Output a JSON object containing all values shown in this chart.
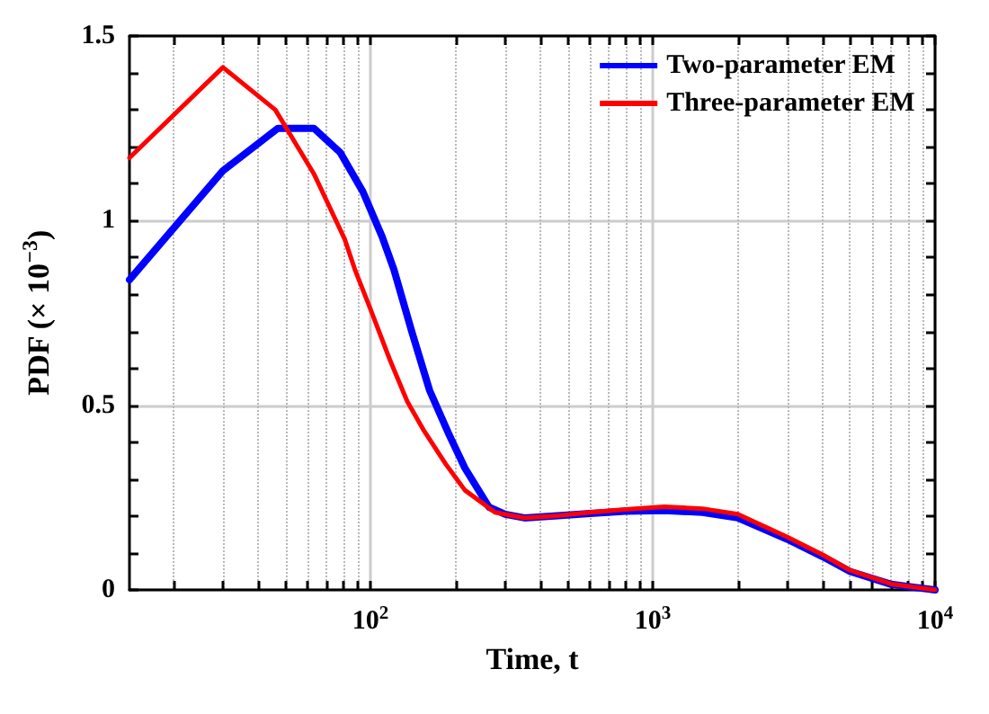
{
  "chart_data": {
    "type": "line",
    "xlabel": "Time, t",
    "ylabel": "PDF (× 10$^{−3}$)",
    "log": "x",
    "grid": true,
    "legend": "top right",
    "line_style": "solid",
    "marker": "none",
    "xlim": [
      14,
      10000
    ],
    "ylim": [
      0,
      1.5
    ],
    "xticks": [
      {
        "value": 20,
        "label": null
      },
      {
        "value": 30,
        "label": null
      },
      {
        "value": 40,
        "label": null
      },
      {
        "value": 50,
        "label": null
      },
      {
        "value": 60,
        "label": null
      },
      {
        "value": 70,
        "label": null
      },
      {
        "value": 80,
        "label": null
      },
      {
        "value": 90,
        "label": null
      },
      {
        "value": 100,
        "label": "10$^{2}$"
      },
      {
        "value": 200,
        "label": null
      },
      {
        "value": 300,
        "label": null
      },
      {
        "value": 400,
        "label": null
      },
      {
        "value": 500,
        "label": null
      },
      {
        "value": 600,
        "label": null
      },
      {
        "value": 700,
        "label": null
      },
      {
        "value": 800,
        "label": null
      },
      {
        "value": 900,
        "label": null
      },
      {
        "value": 1000,
        "label": "10$^{3}$"
      },
      {
        "value": 2000,
        "label": null
      },
      {
        "value": 3000,
        "label": null
      },
      {
        "value": 4000,
        "label": null
      },
      {
        "value": 5000,
        "label": null
      },
      {
        "value": 6000,
        "label": null
      },
      {
        "value": 7000,
        "label": null
      },
      {
        "value": 8000,
        "label": null
      },
      {
        "value": 9000,
        "label": null
      },
      {
        "value": 10000,
        "label": "10$^{4}$"
      }
    ],
    "yticks": [
      0,
      {
        "value": 0.1,
        "label": null
      },
      {
        "value": 0.2,
        "label": null
      },
      {
        "value": 0.3,
        "label": null
      },
      {
        "value": 0.4,
        "label": null
      },
      0.5,
      {
        "value": 0.6,
        "label": null
      },
      {
        "value": 0.7,
        "label": null
      },
      {
        "value": 0.8,
        "label": null
      },
      {
        "value": 0.9,
        "label": null
      },
      1,
      {
        "value": 1.1,
        "label": null
      },
      {
        "value": 1.2,
        "label": null
      },
      {
        "value": 1.3,
        "label": null
      },
      {
        "value": 1.4,
        "label": null
      },
      1.5
    ],
    "series": [
      {
        "name": "Two-parameter EM",
        "color": "#0000ff",
        "x": [
          14,
          30,
          47,
          63,
          78,
          94,
          110,
          121,
          140,
          162,
          190,
          216,
          263,
          300,
          351,
          450,
          600,
          800,
          1100,
          1500,
          2000,
          3000,
          4000,
          5000,
          7000,
          10000
        ],
        "values": [
          0.84,
          1.135,
          1.25,
          1.25,
          1.185,
          1.078,
          0.956,
          0.868,
          0.7,
          0.54,
          0.42,
          0.33,
          0.224,
          0.205,
          0.195,
          0.2,
          0.207,
          0.213,
          0.215,
          0.21,
          0.195,
          0.137,
          0.09,
          0.05,
          0.015,
          0
        ]
      },
      {
        "name": "Three-parameter EM",
        "color": "#ff0000",
        "x": [
          14,
          30,
          46,
          63,
          81,
          88,
          100,
          117,
          135,
          155,
          185,
          216,
          276,
          351,
          450,
          600,
          800,
          1100,
          1500,
          2000,
          3000,
          4000,
          5000,
          7000,
          10000
        ],
        "values": [
          1.17,
          1.415,
          1.3,
          1.127,
          0.95,
          0.868,
          0.76,
          0.624,
          0.51,
          0.43,
          0.34,
          0.27,
          0.21,
          0.195,
          0.2,
          0.21,
          0.218,
          0.225,
          0.22,
          0.205,
          0.143,
          0.095,
          0.053,
          0.016,
          0
        ]
      }
    ]
  }
}
